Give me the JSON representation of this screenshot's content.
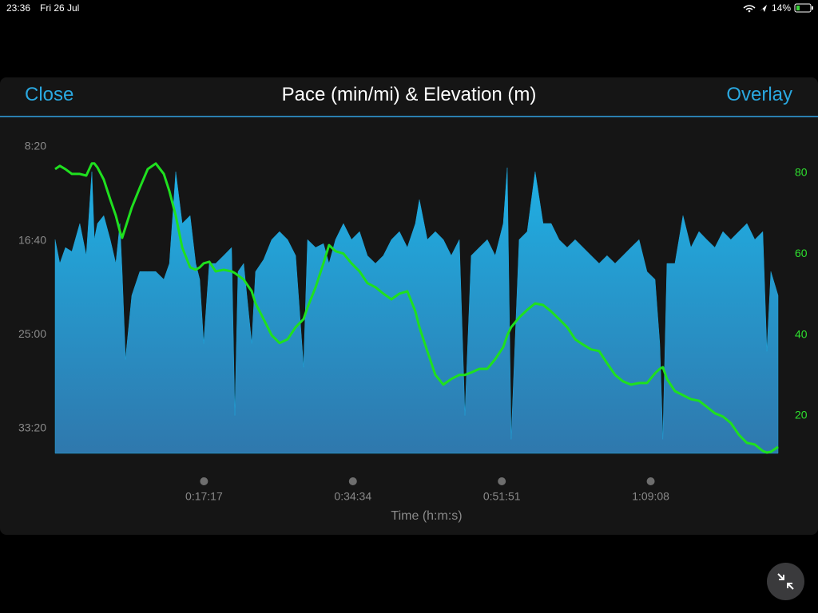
{
  "status_bar": {
    "time": "23:36",
    "date": "Fri 26 Jul",
    "battery": "14%"
  },
  "header": {
    "left_button": "Close",
    "right_button": "Overlay"
  },
  "chart_data": {
    "type": "area_line",
    "title": "Pace (min/mi) & Elevation (m)",
    "xlabel": "Time (h:m:s)",
    "x": [
      0,
      33,
      72,
      117,
      172,
      217,
      256,
      273,
      295,
      339,
      384,
      423,
      451,
      467,
      490,
      534,
      590,
      645,
      701,
      757,
      796,
      840,
      885,
      940,
      979,
      1007,
      1035,
      1074,
      1118,
      1174,
      1229,
      1252,
      1274,
      1313,
      1369,
      1396,
      1452,
      1508,
      1563,
      1619,
      1675,
      1730,
      1758,
      1814,
      1869,
      1908,
      1953,
      2008,
      2064,
      2120,
      2175,
      2231,
      2286,
      2342,
      2398,
      2453,
      2509,
      2537,
      2592,
      2648,
      2704,
      2759,
      2815,
      2854,
      2898,
      2954,
      3010,
      3065,
      3121,
      3149,
      3176,
      3232,
      3288,
      3343,
      3399,
      3455,
      3510,
      3566,
      3622,
      3677,
      3733,
      3789,
      3844,
      3900,
      3955,
      4011,
      4067,
      4122,
      4178,
      4211,
      4233,
      4261,
      4317,
      4373,
      4428,
      4484,
      4539,
      4595,
      4651,
      4706,
      4762,
      4818,
      4873,
      4929,
      4957,
      4985,
      5035
    ],
    "xlim": [
      0,
      5035
    ],
    "xticks": [
      {
        "value": 1037,
        "label": "0:17:17"
      },
      {
        "value": 2074,
        "label": "0:34:34"
      },
      {
        "value": 3111,
        "label": "0:51:51"
      },
      {
        "value": 4148,
        "label": "1:09:08"
      }
    ],
    "ylim": [
      2132,
      500
    ],
    "yticks": [
      {
        "value": 500,
        "label": "8:20"
      },
      {
        "value": 1000,
        "label": "16:40"
      },
      {
        "value": 1500,
        "label": "25:00"
      },
      {
        "value": 2000,
        "label": "33:20"
      }
    ],
    "y2lim": [
      10.7,
      86.5
    ],
    "y2ticks": [
      20,
      40,
      60,
      80
    ],
    "series": [
      {
        "color": "#1ea7dd",
        "values": [
          994,
          1121,
          1036,
          1057,
          908,
          1079,
          632,
          994,
          908,
          866,
          994,
          1121,
          908,
          1164,
          1632,
          1291,
          1164,
          1164,
          1164,
          1206,
          1121,
          632,
          908,
          866,
          1121,
          1206,
          1547,
          1121,
          1121,
          1079,
          1036,
          1930,
          1164,
          1121,
          1547,
          1164,
          1100,
          994,
          951,
          994,
          1079,
          1674,
          994,
          1036,
          1015,
          1121,
          994,
          908,
          994,
          951,
          1079,
          1121,
          1079,
          994,
          951,
          1036,
          908,
          781,
          994,
          951,
          994,
          1079,
          994,
          1930,
          1079,
          1036,
          994,
          1079,
          908,
          611,
          2057,
          994,
          951,
          632,
          908,
          908,
          994,
          1036,
          994,
          1036,
          1079,
          1121,
          1079,
          1121,
          1079,
          1036,
          994,
          1164,
          1206,
          1547,
          2057,
          1121,
          1121,
          866,
          1036,
          951,
          994,
          1036,
          951,
          994,
          951,
          908,
          994,
          951,
          1589,
          1164,
          1291
        ]
      },
      {
        "color": "#1fe01f",
        "axis": "y2",
        "values": [
          81.0,
          81.8,
          81.0,
          79.8,
          79.8,
          79.4,
          82.4,
          82.4,
          81.4,
          78.4,
          73.5,
          69.5,
          65.6,
          64.0,
          66.6,
          71.5,
          76.4,
          81.0,
          82.4,
          79.8,
          75.5,
          69.5,
          61.6,
          56.7,
          56.1,
          56.7,
          57.7,
          58.1,
          55.7,
          56.1,
          55.7,
          55.3,
          54.7,
          53.7,
          50.8,
          47.8,
          43.9,
          39.9,
          38.0,
          38.9,
          41.9,
          43.9,
          46.8,
          51.8,
          57.7,
          62.2,
          60.7,
          60.1,
          57.7,
          55.7,
          52.8,
          51.8,
          50.2,
          48.8,
          50.2,
          50.8,
          45.8,
          41.9,
          36.0,
          30.1,
          27.7,
          29.1,
          30.1,
          30.1,
          30.7,
          31.6,
          31.6,
          34.0,
          37.0,
          39.9,
          41.9,
          44.3,
          46.2,
          47.8,
          47.4,
          45.8,
          43.9,
          41.9,
          38.9,
          37.6,
          36.4,
          36.0,
          33.0,
          30.1,
          28.5,
          27.7,
          28.1,
          28.1,
          30.5,
          31.6,
          32.0,
          29.1,
          26.1,
          25.1,
          24.1,
          23.7,
          22.2,
          20.6,
          19.8,
          18.2,
          15.3,
          13.3,
          12.9,
          11.3,
          10.9,
          11.1,
          12.3
        ]
      }
    ]
  }
}
